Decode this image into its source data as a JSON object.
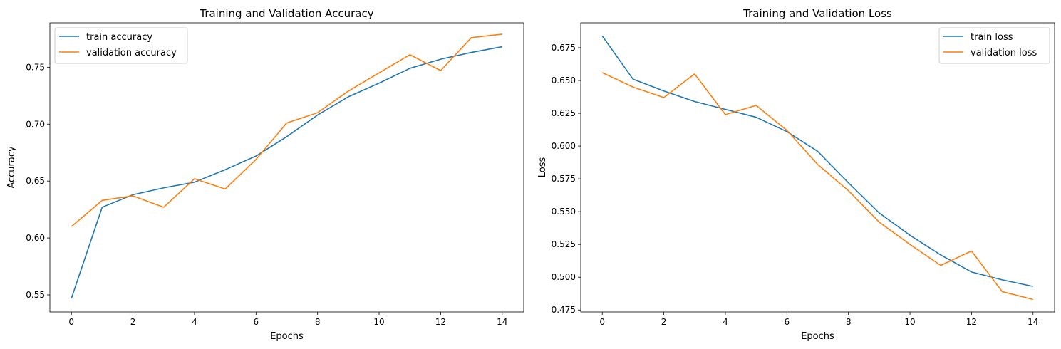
{
  "chart_data": [
    {
      "type": "line",
      "title": "Training and Validation Accuracy",
      "xlabel": "Epochs",
      "ylabel": "Accuracy",
      "x": [
        0,
        1,
        2,
        3,
        4,
        5,
        6,
        7,
        8,
        9,
        10,
        11,
        12,
        13,
        14
      ],
      "xlim": [
        -0.7,
        14.7
      ],
      "ylim": [
        0.535,
        0.789
      ],
      "xticks": [
        "0",
        "2",
        "4",
        "6",
        "8",
        "10",
        "12",
        "14"
      ],
      "xtick_values": [
        0,
        2,
        4,
        6,
        8,
        10,
        12,
        14
      ],
      "yticks": [
        "0.55",
        "0.60",
        "0.65",
        "0.70",
        "0.75"
      ],
      "ytick_values": [
        0.55,
        0.6,
        0.65,
        0.7,
        0.75
      ],
      "legend_position": "top-left",
      "grid": false,
      "series": [
        {
          "name": "train accuracy",
          "color": "#1f77b4",
          "values": [
            0.547,
            0.627,
            0.638,
            0.644,
            0.649,
            0.66,
            0.672,
            0.689,
            0.708,
            0.724,
            0.736,
            0.749,
            0.757,
            0.763,
            0.768
          ]
        },
        {
          "name": "validation accuracy",
          "color": "#ff7f0e",
          "values": [
            0.61,
            0.633,
            0.637,
            0.627,
            0.652,
            0.643,
            0.669,
            0.701,
            0.71,
            0.729,
            0.745,
            0.761,
            0.747,
            0.776,
            0.779
          ]
        }
      ]
    },
    {
      "type": "line",
      "title": "Training and Validation Loss",
      "xlabel": "Epochs",
      "ylabel": "Loss",
      "x": [
        0,
        1,
        2,
        3,
        4,
        5,
        6,
        7,
        8,
        9,
        10,
        11,
        12,
        13,
        14
      ],
      "xlim": [
        -0.7,
        14.7
      ],
      "ylim": [
        0.4735,
        0.694
      ],
      "xticks": [
        "0",
        "2",
        "4",
        "6",
        "8",
        "10",
        "12",
        "14"
      ],
      "xtick_values": [
        0,
        2,
        4,
        6,
        8,
        10,
        12,
        14
      ],
      "yticks": [
        "0.475",
        "0.500",
        "0.525",
        "0.550",
        "0.575",
        "0.600",
        "0.625",
        "0.650",
        "0.675"
      ],
      "ytick_values": [
        0.475,
        0.5,
        0.525,
        0.55,
        0.575,
        0.6,
        0.625,
        0.65,
        0.675
      ],
      "legend_position": "top-right",
      "grid": false,
      "series": [
        {
          "name": "train loss",
          "color": "#1f77b4",
          "values": [
            0.684,
            0.651,
            0.642,
            0.634,
            0.628,
            0.622,
            0.611,
            0.596,
            0.572,
            0.549,
            0.532,
            0.517,
            0.504,
            0.498,
            0.493
          ]
        },
        {
          "name": "validation loss",
          "color": "#ff7f0e",
          "values": [
            0.656,
            0.645,
            0.637,
            0.655,
            0.624,
            0.631,
            0.612,
            0.586,
            0.566,
            0.542,
            0.525,
            0.509,
            0.52,
            0.489,
            0.483
          ]
        }
      ]
    }
  ]
}
